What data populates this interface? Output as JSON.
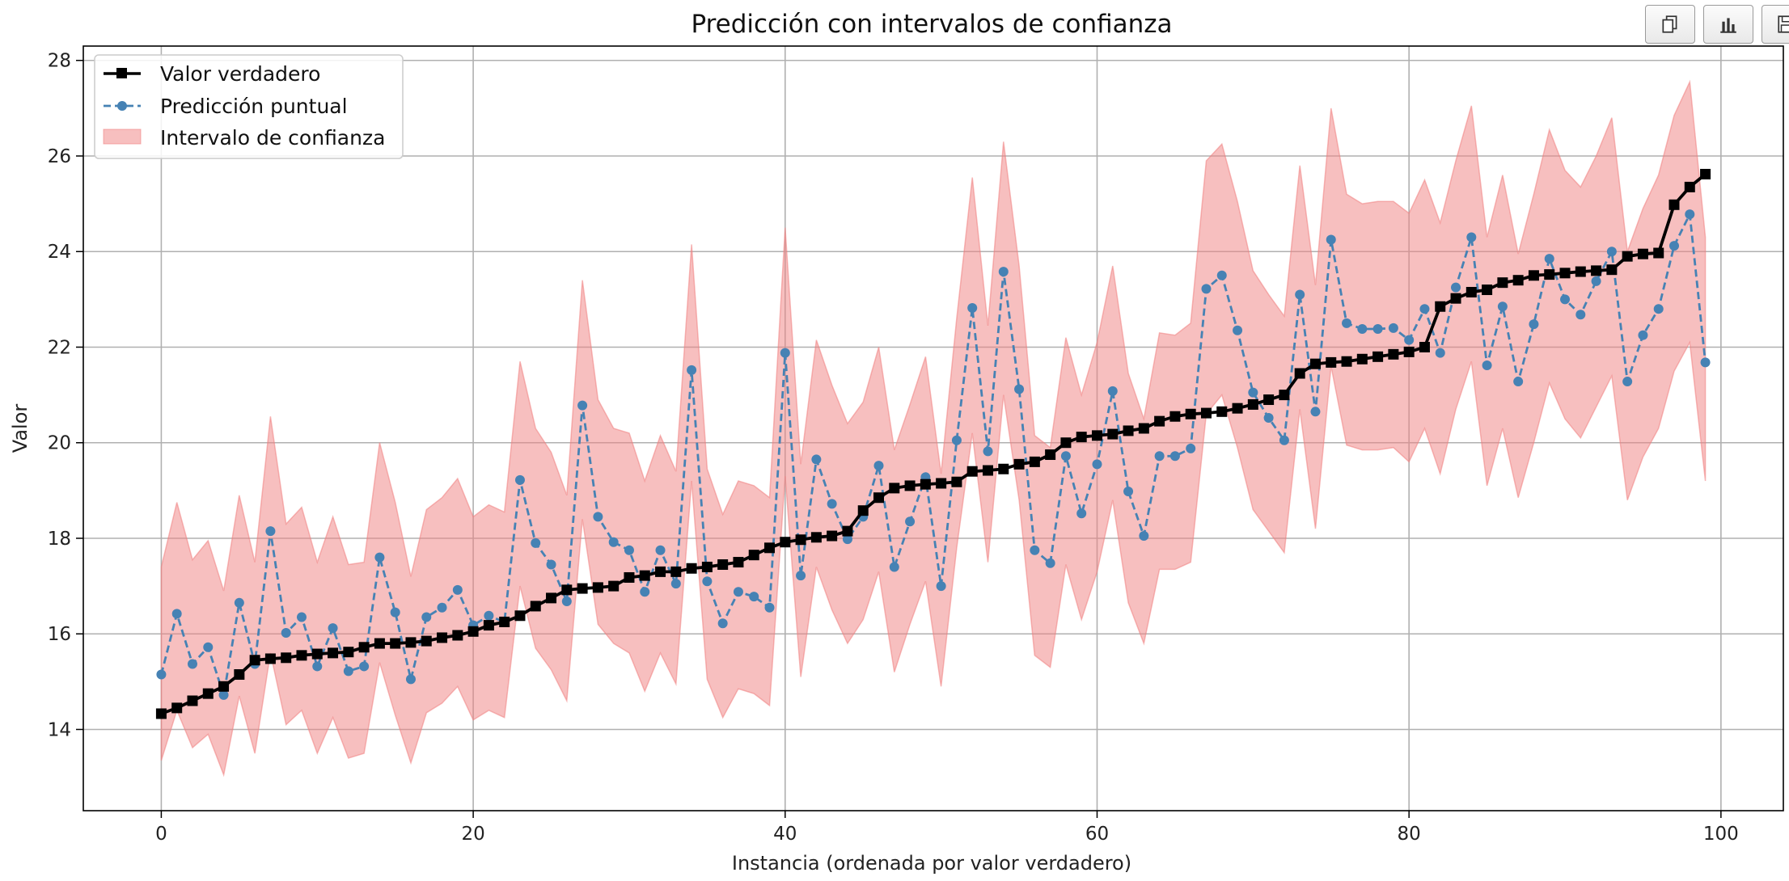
{
  "toolbar": {
    "buttons": [
      {
        "icon": "copy-icon"
      },
      {
        "icon": "bar-chart-icon"
      },
      {
        "icon": "save-icon"
      }
    ]
  },
  "chart_data": {
    "type": "line",
    "title": "Predicción con intervalos de confianza",
    "xlabel": "Instancia (ordenada por valor verdadero)",
    "ylabel": "Valor",
    "xlim": [
      -5,
      104
    ],
    "ylim": [
      12.3,
      28.3
    ],
    "xticks": [
      0,
      20,
      40,
      60,
      80,
      100
    ],
    "yticks": [
      14,
      16,
      18,
      20,
      22,
      24,
      26,
      28
    ],
    "grid": true,
    "legend_position": "top-left",
    "legend": [
      "Valor verdadero",
      "Predicción puntual",
      "Intervalo de confianza"
    ],
    "colors": {
      "true_value": "#000000",
      "prediction": "#4682b4",
      "interval": "#f08080"
    },
    "x": [
      0,
      1,
      2,
      3,
      4,
      5,
      6,
      7,
      8,
      9,
      10,
      11,
      12,
      13,
      14,
      15,
      16,
      17,
      18,
      19,
      20,
      21,
      22,
      23,
      24,
      25,
      26,
      27,
      28,
      29,
      30,
      31,
      32,
      33,
      34,
      35,
      36,
      37,
      38,
      39,
      40,
      41,
      42,
      43,
      44,
      45,
      46,
      47,
      48,
      49,
      50,
      51,
      52,
      53,
      54,
      55,
      56,
      57,
      58,
      59,
      60,
      61,
      62,
      63,
      64,
      65,
      66,
      67,
      68,
      69,
      70,
      71,
      72,
      73,
      74,
      75,
      76,
      77,
      78,
      79,
      80,
      81,
      82,
      83,
      84,
      85,
      86,
      87,
      88,
      89,
      90,
      91,
      92,
      93,
      94,
      95,
      96,
      97,
      98,
      99
    ],
    "series": [
      {
        "name": "Valor verdadero",
        "style": "solid-square",
        "values": [
          14.33,
          14.45,
          14.6,
          14.75,
          14.9,
          15.15,
          15.45,
          15.48,
          15.5,
          15.55,
          15.58,
          15.6,
          15.62,
          15.72,
          15.8,
          15.8,
          15.82,
          15.85,
          15.92,
          15.97,
          16.05,
          16.18,
          16.25,
          16.38,
          16.58,
          16.75,
          16.92,
          16.95,
          16.97,
          17.0,
          17.18,
          17.22,
          17.3,
          17.3,
          17.37,
          17.4,
          17.45,
          17.5,
          17.65,
          17.8,
          17.92,
          17.97,
          18.02,
          18.05,
          18.15,
          18.58,
          18.85,
          19.05,
          19.1,
          19.13,
          19.15,
          19.18,
          19.4,
          19.42,
          19.45,
          19.55,
          19.6,
          19.75,
          20.0,
          20.12,
          20.15,
          20.18,
          20.25,
          20.3,
          20.45,
          20.55,
          20.6,
          20.62,
          20.65,
          20.72,
          20.8,
          20.9,
          21.0,
          21.45,
          21.65,
          21.68,
          21.7,
          21.75,
          21.8,
          21.85,
          21.9,
          22.0,
          22.85,
          23.02,
          23.15,
          23.2,
          23.35,
          23.4,
          23.5,
          23.52,
          23.55,
          23.58,
          23.6,
          23.62,
          23.9,
          23.95,
          23.97,
          24.98,
          25.35,
          25.62
        ]
      },
      {
        "name": "Predicción puntual",
        "style": "dashed-circle",
        "values": [
          15.15,
          16.42,
          15.37,
          15.72,
          14.72,
          16.65,
          15.37,
          18.15,
          16.02,
          16.35,
          15.32,
          16.12,
          15.22,
          15.32,
          17.6,
          16.45,
          15.05,
          16.35,
          16.55,
          16.92,
          16.18,
          16.38,
          16.25,
          19.22,
          17.9,
          17.45,
          16.68,
          20.78,
          18.45,
          17.92,
          17.75,
          16.88,
          17.75,
          17.05,
          21.52,
          17.1,
          16.22,
          16.88,
          16.78,
          16.55,
          21.88,
          17.22,
          19.65,
          18.72,
          17.98,
          18.45,
          19.52,
          17.4,
          18.35,
          19.28,
          17.0,
          20.05,
          22.82,
          19.82,
          23.58,
          21.12,
          17.75,
          17.48,
          19.72,
          18.52,
          19.55,
          21.08,
          18.98,
          18.05,
          19.72,
          19.72,
          19.88,
          23.22,
          23.5,
          22.35,
          21.05,
          20.52,
          20.05,
          23.1,
          20.65,
          24.25,
          22.5,
          22.38,
          22.38,
          22.4,
          22.15,
          22.8,
          21.88,
          23.25,
          24.3,
          21.62,
          22.85,
          21.28,
          22.48,
          23.85,
          23.0,
          22.68,
          23.38,
          24.0,
          21.28,
          22.25,
          22.8,
          24.12,
          24.78,
          21.68
        ]
      }
    ],
    "interval": {
      "name": "Intervalo de confianza",
      "lower": [
        13.35,
        14.4,
        13.62,
        13.9,
        13.05,
        14.7,
        13.5,
        15.6,
        14.1,
        14.4,
        13.5,
        14.25,
        13.4,
        13.5,
        15.4,
        14.3,
        13.3,
        14.35,
        14.55,
        14.9,
        14.2,
        14.4,
        14.25,
        17.0,
        15.7,
        15.25,
        14.6,
        18.4,
        16.2,
        15.8,
        15.6,
        14.8,
        15.6,
        14.95,
        19.2,
        15.05,
        14.25,
        14.85,
        14.75,
        14.5,
        19.3,
        15.1,
        17.4,
        16.5,
        15.8,
        16.3,
        17.3,
        15.2,
        16.2,
        17.1,
        14.9,
        17.8,
        20.2,
        17.5,
        21.0,
        18.8,
        15.55,
        15.3,
        17.45,
        16.3,
        17.3,
        18.8,
        16.65,
        15.8,
        17.35,
        17.35,
        17.5,
        20.6,
        21.0,
        19.9,
        18.6,
        18.15,
        17.7,
        20.7,
        18.2,
        21.6,
        19.95,
        19.85,
        19.85,
        19.9,
        19.6,
        20.3,
        19.35,
        20.7,
        21.7,
        19.1,
        20.3,
        18.85,
        20.0,
        21.25,
        20.5,
        20.1,
        20.75,
        21.4,
        18.8,
        19.7,
        20.3,
        21.5,
        22.1,
        19.2
      ],
      "upper": [
        17.4,
        18.75,
        17.55,
        17.95,
        16.9,
        18.9,
        17.5,
        20.55,
        18.3,
        18.65,
        17.5,
        18.45,
        17.45,
        17.5,
        20.0,
        18.75,
        17.2,
        18.6,
        18.85,
        19.25,
        18.45,
        18.7,
        18.55,
        21.7,
        20.3,
        19.8,
        18.9,
        23.4,
        20.9,
        20.3,
        20.2,
        19.2,
        20.15,
        19.4,
        24.15,
        19.45,
        18.5,
        19.2,
        19.1,
        18.85,
        24.5,
        19.55,
        22.15,
        21.2,
        20.4,
        20.85,
        22.0,
        19.85,
        20.8,
        21.8,
        19.35,
        22.6,
        25.55,
        22.45,
        26.3,
        23.7,
        20.15,
        19.9,
        22.2,
        21.0,
        22.1,
        23.7,
        21.45,
        20.5,
        22.3,
        22.25,
        22.5,
        25.9,
        26.25,
        25.05,
        23.6,
        23.1,
        22.65,
        25.8,
        23.3,
        27.0,
        25.2,
        25.0,
        25.05,
        25.05,
        24.8,
        25.5,
        24.6,
        25.9,
        27.05,
        24.3,
        25.6,
        23.95,
        25.2,
        26.55,
        25.7,
        25.35,
        26.0,
        26.8,
        24.0,
        24.9,
        25.6,
        26.85,
        27.55,
        24.3
      ]
    }
  }
}
